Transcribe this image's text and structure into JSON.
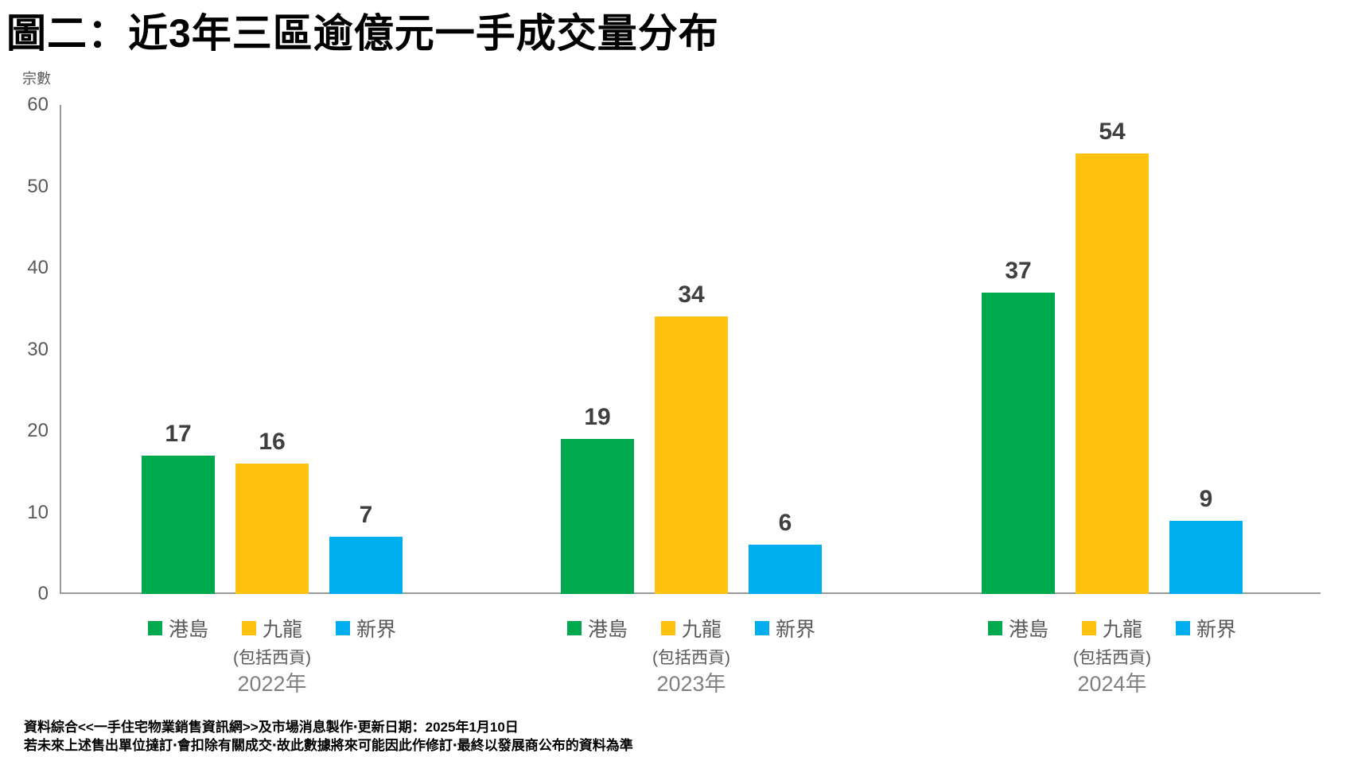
{
  "title": "圖二：近3年三區逾億元一手成交量分布",
  "y_axis_label": "宗數",
  "footnotes": [
    "資料綜合<<一手住宅物業銷售資訊網>>及市場消息製作‧更新日期：2025年1月10日",
    "若未來上述售出單位撻訂‧會扣除有關成交‧故此數據將來可能因此作修訂‧最終以發展商公布的資料為準"
  ],
  "colors": {
    "hong_kong_island_green": "#00A84E",
    "kowloon_yellow": "#FFC20E",
    "new_territories_blue": "#00AEEF",
    "axis_line": "#9A9A9A",
    "tick_text": "#595959",
    "value_text": "#3F3F3F",
    "year_text": "#808080",
    "legend_text": "#595959",
    "title_text": "#000000"
  },
  "chart_data": {
    "type": "bar",
    "title": "圖二：近3年三區逾億元一手成交量分布",
    "xlabel": "",
    "ylabel": "宗數",
    "ylim": [
      0,
      60
    ],
    "yticks": [
      0,
      10,
      20,
      30,
      40,
      50,
      60
    ],
    "grid": false,
    "legend_position": "below-each-group",
    "categories": [
      "2022年",
      "2023年",
      "2024年"
    ],
    "series": [
      {
        "name": "港島",
        "sublabel": "",
        "color": "#00A84E",
        "values": [
          17,
          19,
          37
        ]
      },
      {
        "name": "九龍",
        "sublabel": "(包括西貢)",
        "color": "#FFC20E",
        "values": [
          16,
          34,
          54
        ]
      },
      {
        "name": "新界",
        "sublabel": "",
        "color": "#00AEEF",
        "values": [
          7,
          6,
          9
        ]
      }
    ]
  }
}
